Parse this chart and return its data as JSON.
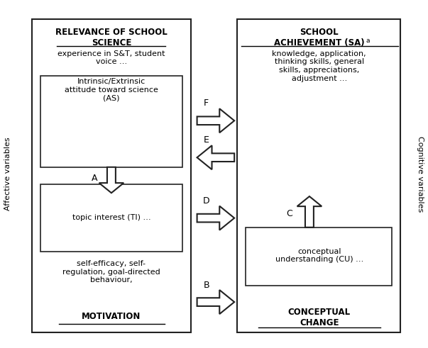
{
  "bg_color": "#ffffff",
  "left_title_line1": "RELEVANCE OF SCHOOL",
  "left_title_line2": "SCIENCE",
  "left_subtitle": "experience in S&T, student\nvoice …",
  "as_text": "Intrinsic/Extrinsic\nattitude toward science\n(AS)",
  "ti_text": "topic interest (TI) …",
  "motivation_text": "self-efficacy, self-\nregulation, goal-directed\nbehaviour,",
  "motivation_label": "MOTIVATION",
  "right_title_line1": "SCHOOL",
  "right_title_line2": "ACHIEVEMENT (SA)",
  "right_superscript": "a",
  "right_subtitle": "knowledge, application,\nthinking skills, general\nskills, appreciations,\nadjustment …",
  "cu_text": "conceptual\nunderstanding (CU) …",
  "conceptual_change_label": "CONCEPTUAL\nCHANGE",
  "affective_label": "Affective variables",
  "cognitive_label": "Cognitive variables",
  "figsize": [
    6.03,
    4.91
  ],
  "dpi": 100
}
